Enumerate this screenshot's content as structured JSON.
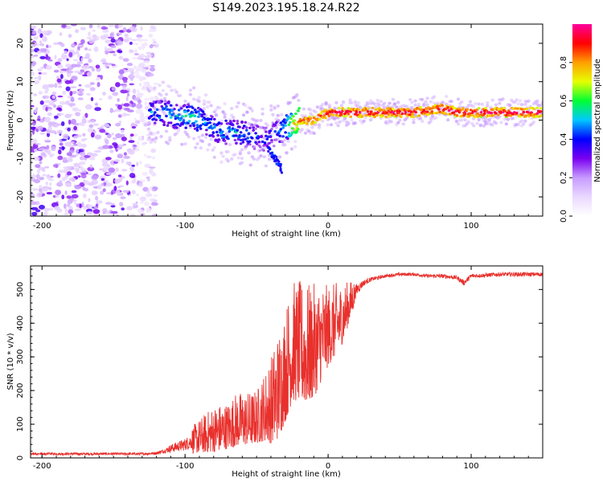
{
  "title": "S149.2023.195.18.24.R22",
  "colors": {
    "snr_line": "#e8302c",
    "spectrogram_colormap": [
      "#ffffff",
      "#ead8ff",
      "#c79bff",
      "#7a00f0",
      "#0000ff",
      "#00c8ff",
      "#00ff33",
      "#e6ff00",
      "#ff9f00",
      "#ff0000",
      "#ff009c"
    ]
  },
  "chart_data": [
    {
      "type": "heatmap",
      "id": "spectrogram",
      "title": "S149.2023.195.18.24.R22",
      "xlabel": "Height of straight line (km)",
      "ylabel": "Frequency (Hz)",
      "xlim": [
        -208,
        150
      ],
      "ylim": [
        -25,
        25
      ],
      "xticks": [
        -200,
        -100,
        0,
        100
      ],
      "yticks": [
        -20,
        -10,
        0,
        10,
        20
      ],
      "colorbar": {
        "label": "Normalized spectral amplitude",
        "range": [
          0,
          1
        ],
        "ticks": [
          0.0,
          0.2,
          0.4,
          0.6,
          0.8
        ],
        "tick_labels": [
          "0.0",
          "0.2",
          "0.4",
          "0.6",
          "0.8"
        ]
      },
      "ridge": {
        "x": [
          -125,
          -115,
          -105,
          -95,
          -85,
          -75,
          -65,
          -55,
          -45,
          -40,
          -35,
          -30,
          -25,
          -20,
          -10,
          -5,
          0,
          10,
          20,
          40,
          60,
          80,
          90,
          100,
          120,
          150
        ],
        "y": [
          2,
          2,
          1,
          1,
          -1,
          -3,
          -3,
          -4,
          -5,
          -4,
          -3,
          -2,
          -1,
          0,
          0,
          1,
          2,
          2,
          2,
          2,
          2,
          3,
          2,
          2,
          2,
          2
        ],
        "amplitude": [
          0.45,
          0.5,
          0.5,
          0.55,
          0.5,
          0.5,
          0.5,
          0.45,
          0.4,
          0.4,
          0.45,
          0.55,
          0.7,
          0.85,
          0.9,
          0.9,
          0.95,
          0.95,
          0.95,
          0.95,
          0.95,
          0.95,
          0.95,
          0.95,
          0.95,
          0.95
        ]
      },
      "noise_region": {
        "x_range": [
          -208,
          -120
        ],
        "amplitude_range": [
          0.1,
          0.35
        ]
      }
    },
    {
      "type": "line",
      "id": "snr",
      "xlabel": "Height of straight line (km)",
      "ylabel": "SNR (10 * v/v)",
      "xlim": [
        -208,
        150
      ],
      "ylim": [
        0,
        570
      ],
      "xticks": [
        -200,
        -100,
        0,
        100
      ],
      "yticks": [
        0,
        100,
        200,
        300,
        400,
        500
      ],
      "series": [
        {
          "x": [
            -208,
            -190,
            -170,
            -150,
            -130,
            -120,
            -115,
            -110,
            -100,
            -90,
            -80,
            -70,
            -65,
            -60,
            -55,
            -50,
            -45,
            -40,
            -35,
            -30,
            -25,
            -20,
            -15,
            -10,
            -5,
            0,
            5,
            10,
            15,
            20,
            25,
            30,
            40,
            50,
            60,
            70,
            80,
            90,
            95,
            100,
            120,
            150
          ],
          "y": [
            12,
            12,
            12,
            12,
            12,
            14,
            20,
            28,
            40,
            60,
            80,
            90,
            105,
            110,
            110,
            115,
            140,
            160,
            200,
            260,
            330,
            330,
            320,
            330,
            360,
            380,
            400,
            420,
            460,
            500,
            520,
            530,
            540,
            545,
            545,
            540,
            540,
            535,
            520,
            540,
            545,
            545
          ],
          "spread": [
            6,
            6,
            6,
            6,
            6,
            8,
            10,
            20,
            30,
            50,
            70,
            70,
            80,
            80,
            80,
            80,
            100,
            130,
            160,
            170,
            180,
            180,
            180,
            170,
            150,
            120,
            110,
            90,
            60,
            30,
            15,
            10,
            8,
            8,
            8,
            8,
            10,
            10,
            15,
            10,
            10,
            10
          ]
        }
      ]
    }
  ]
}
